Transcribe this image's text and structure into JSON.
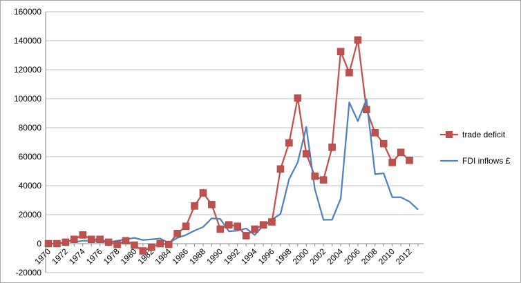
{
  "chart_data": {
    "type": "line",
    "title": "",
    "xlabel": "",
    "ylabel": "",
    "ylim": [
      -20000,
      160000
    ],
    "y_ticks": [
      -20000,
      0,
      20000,
      40000,
      60000,
      80000,
      100000,
      120000,
      140000,
      160000
    ],
    "x": [
      1970,
      1971,
      1972,
      1973,
      1974,
      1975,
      1976,
      1977,
      1978,
      1979,
      1980,
      1981,
      1982,
      1983,
      1984,
      1985,
      1986,
      1987,
      1988,
      1989,
      1990,
      1991,
      1992,
      1993,
      1994,
      1995,
      1996,
      1997,
      1998,
      1999,
      2000,
      2001,
      2002,
      2003,
      2004,
      2005,
      2006,
      2007,
      2008,
      2009,
      2010,
      2011,
      2012,
      2013
    ],
    "x_tick_labels": [
      "1970",
      "1972",
      "1974",
      "1976",
      "1978",
      "1980",
      "1982",
      "1984",
      "1986",
      "1988",
      "1990",
      "1992",
      "1994",
      "1996",
      "1998",
      "2000",
      "2002",
      "2004",
      "2006",
      "2008",
      "2010",
      "2012"
    ],
    "grid": "horizontal",
    "legend_position": "right",
    "series": [
      {
        "name": "trade deficit",
        "color": "#c0504d",
        "marker": "square",
        "values": [
          0,
          0,
          1000,
          3000,
          6000,
          3000,
          3000,
          1000,
          -500,
          2000,
          -1000,
          -5000,
          -2500,
          0,
          -500,
          7000,
          12000,
          26000,
          35000,
          27000,
          10000,
          13000,
          12000,
          5500,
          10000,
          13000,
          15000,
          51500,
          69500,
          100500,
          62000,
          46500,
          44000,
          66500,
          132500,
          118000,
          140500,
          92500,
          76500,
          69000,
          56000,
          63000,
          57500,
          null
        ]
      },
      {
        "name": "FDI inflows £",
        "color": "#4f81bd",
        "marker": "none",
        "values": [
          null,
          null,
          null,
          1000,
          2000,
          2000,
          1500,
          1000,
          2000,
          3000,
          4000,
          2500,
          3000,
          3500,
          500,
          4000,
          6000,
          9000,
          11500,
          17500,
          17000,
          8500,
          9000,
          10500,
          6000,
          12500,
          16500,
          20500,
          44500,
          56000,
          80500,
          37500,
          16500,
          16500,
          31000,
          97500,
          84500,
          99500,
          48000,
          48500,
          32000,
          32000,
          29000,
          23500
        ]
      }
    ]
  }
}
